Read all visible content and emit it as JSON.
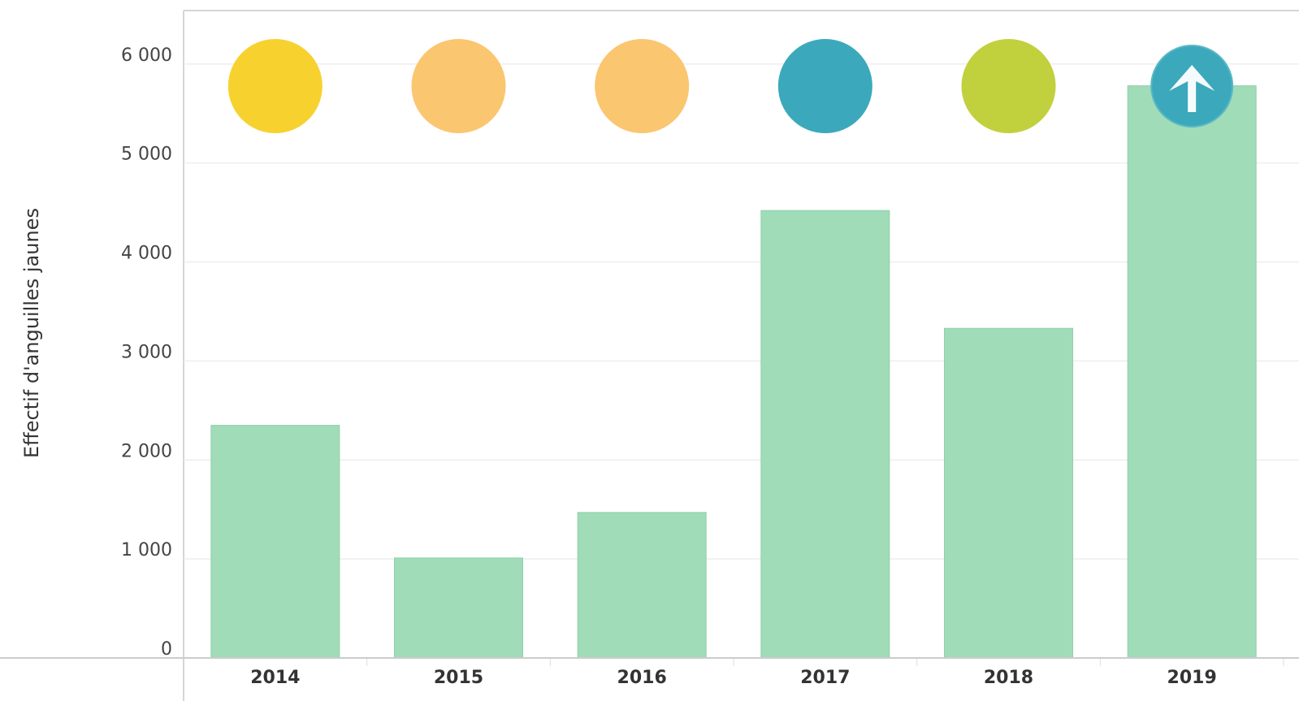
{
  "chart_data": {
    "type": "bar",
    "y_label": "Effectif d'anguilles jaunes",
    "categories": [
      "2014",
      "2015",
      "2016",
      "2017",
      "2018",
      "2019"
    ],
    "values": [
      2350,
      1010,
      1470,
      4520,
      3330,
      5780
    ],
    "color": "#a0dcb8",
    "indicator_colors": [
      "#f7d22f",
      "#fbc670",
      "#fbc670",
      "#3ba9bb",
      "#c1d03d",
      "#3ba9bb"
    ],
    "ylim": [
      0,
      6540
    ],
    "yticks": [
      0,
      {
        "value": 1000,
        "label": "1 000"
      },
      {
        "value": 2000,
        "label": "2 000"
      },
      {
        "value": 3000,
        "label": "3 000"
      },
      {
        "value": 4000,
        "label": "4 000"
      },
      {
        "value": 5000,
        "label": "5 000"
      },
      {
        "value": 6000,
        "label": "6 000"
      }
    ],
    "grid": true
  }
}
